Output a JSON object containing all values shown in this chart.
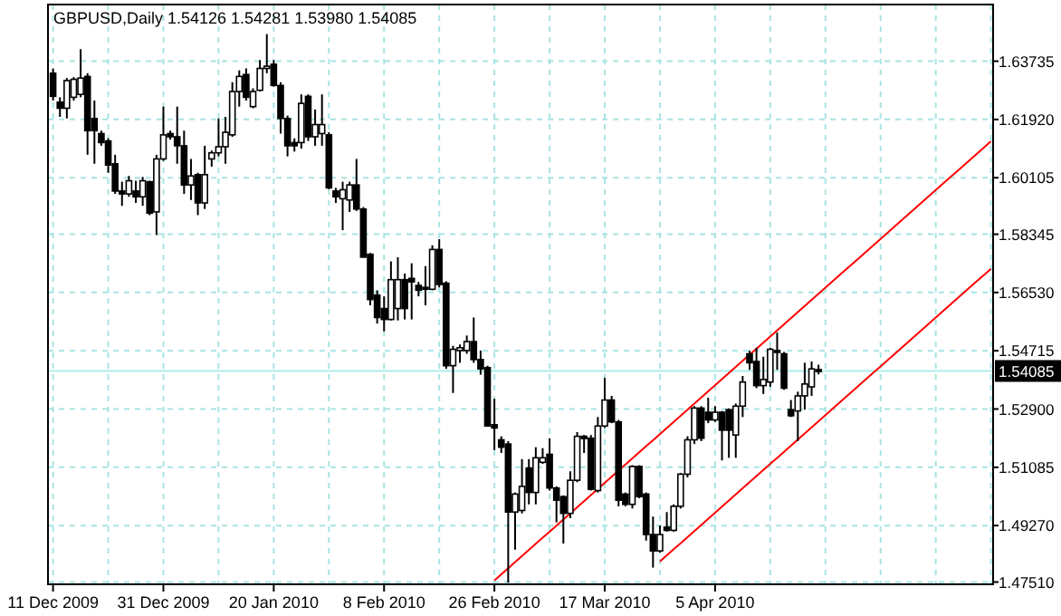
{
  "chart_data": {
    "type": "candlestick",
    "title": "GBPUSD,Daily  1.54126 1.54281 1.53980 1.54085",
    "categories": [
      "11 Dec 2009",
      null,
      null,
      null,
      null,
      null,
      null,
      null,
      null,
      null,
      null,
      null,
      null,
      null,
      null,
      null,
      "31 Dec 2009",
      null,
      null,
      null,
      null,
      null,
      null,
      null,
      null,
      null,
      null,
      null,
      null,
      null,
      null,
      null,
      "20 Jan 2010",
      null,
      null,
      null,
      null,
      null,
      null,
      null,
      null,
      null,
      null,
      null,
      null,
      null,
      null,
      null,
      "8 Feb 2010",
      null,
      null,
      null,
      null,
      null,
      null,
      null,
      null,
      null,
      null,
      null,
      null,
      null,
      null,
      null,
      "26 Feb 2010",
      null,
      null,
      null,
      null,
      null,
      null,
      null,
      null,
      null,
      null,
      null,
      null,
      null,
      null,
      null,
      "17 Mar 2010",
      null,
      null,
      null,
      null,
      null,
      null,
      null,
      null,
      null,
      null,
      null,
      null,
      null,
      null,
      null,
      "5 Apr 2010",
      null,
      null,
      null,
      null,
      null,
      null,
      null,
      null,
      null,
      null,
      null,
      null,
      null,
      null,
      null,
      null,
      null,
      null,
      null,
      null,
      null,
      null,
      null,
      null,
      null,
      null,
      null,
      null,
      null,
      null,
      null,
      null,
      null,
      null,
      null,
      null,
      null,
      null,
      null,
      null
    ],
    "ohlc": [
      [
        1.6336,
        1.6351,
        1.6251,
        1.6264
      ],
      [
        1.6246,
        1.6261,
        1.62,
        1.6227
      ],
      [
        1.6227,
        1.6321,
        1.6195,
        1.6313
      ],
      [
        1.6261,
        1.6324,
        1.6251,
        1.6317
      ],
      [
        1.627,
        1.6411,
        1.6261,
        1.6321
      ],
      [
        1.6326,
        1.6336,
        1.6082,
        1.6157
      ],
      [
        1.6195,
        1.6251,
        1.6054,
        1.6157
      ],
      [
        1.6148,
        1.6157,
        1.611,
        1.612
      ],
      [
        1.6125,
        1.6133,
        1.6026,
        1.605
      ],
      [
        1.6054,
        1.6082,
        1.596,
        1.5969
      ],
      [
        1.5969,
        1.5998,
        1.5923,
        1.596
      ],
      [
        1.596,
        1.6016,
        1.5951,
        1.6001
      ],
      [
        1.5969,
        1.6001,
        1.5932,
        1.5951
      ],
      [
        1.5951,
        1.6013,
        1.5923,
        1.6001
      ],
      [
        1.5998,
        1.6001,
        1.5894,
        1.59
      ],
      [
        1.5904,
        1.6082,
        1.5832,
        1.6069
      ],
      [
        1.6069,
        1.6232,
        1.6063,
        1.6144
      ],
      [
        1.6148,
        1.6157,
        1.6129,
        1.6138
      ],
      [
        1.6138,
        1.6232,
        1.6054,
        1.611
      ],
      [
        1.611,
        1.6157,
        1.596,
        1.5988
      ],
      [
        1.5988,
        1.6069,
        1.5941,
        1.6016
      ],
      [
        1.602,
        1.6026,
        1.5894,
        1.5932
      ],
      [
        1.5932,
        1.611,
        1.5913,
        1.602
      ],
      [
        1.6069,
        1.6095,
        1.6045,
        1.6088
      ],
      [
        1.6088,
        1.6195,
        1.6077,
        1.6107
      ],
      [
        1.6107,
        1.62,
        1.6054,
        1.6152
      ],
      [
        1.6144,
        1.6308,
        1.6138,
        1.6279
      ],
      [
        1.6279,
        1.6345,
        1.6232,
        1.6326
      ],
      [
        1.6332,
        1.6351,
        1.6251,
        1.6261
      ],
      [
        1.6232,
        1.6289,
        1.6227,
        1.6279
      ],
      [
        1.6283,
        1.6377,
        1.6279,
        1.6351
      ],
      [
        1.6351,
        1.6458,
        1.6336,
        1.6358
      ],
      [
        1.6364,
        1.6377,
        1.6294,
        1.6298
      ],
      [
        1.6298,
        1.6308,
        1.6148,
        1.6195
      ],
      [
        1.6195,
        1.6204,
        1.6077,
        1.611
      ],
      [
        1.612,
        1.6133,
        1.6092,
        1.611
      ],
      [
        1.612,
        1.627,
        1.6101,
        1.6242
      ],
      [
        1.6264,
        1.627,
        1.6125,
        1.6138
      ],
      [
        1.6138,
        1.6223,
        1.611,
        1.6176
      ],
      [
        1.6148,
        1.627,
        1.611,
        1.6176
      ],
      [
        1.6144,
        1.6152,
        1.5975,
        1.5979
      ],
      [
        1.5969,
        1.5979,
        1.5932,
        1.5951
      ],
      [
        1.5945,
        1.5998,
        1.5847,
        1.5973
      ],
      [
        1.5941,
        1.5998,
        1.5904,
        1.5988
      ],
      [
        1.5988,
        1.6069,
        1.5907,
        1.5913
      ],
      [
        1.5913,
        1.5919,
        1.5763,
        1.5763
      ],
      [
        1.5772,
        1.5776,
        1.5613,
        1.5631
      ],
      [
        1.5645,
        1.566,
        1.5556,
        1.5575
      ],
      [
        1.5603,
        1.5641,
        1.5532,
        1.5569
      ],
      [
        1.5569,
        1.575,
        1.5566,
        1.5693
      ],
      [
        1.5603,
        1.5763,
        1.5566,
        1.5693
      ],
      [
        1.5693,
        1.5712,
        1.5569,
        1.5603
      ],
      [
        1.5697,
        1.5744,
        1.5569,
        1.5686
      ],
      [
        1.5675,
        1.5686,
        1.5641,
        1.566
      ],
      [
        1.5669,
        1.5735,
        1.5613,
        1.5663
      ],
      [
        1.5663,
        1.58,
        1.566,
        1.5787
      ],
      [
        1.5787,
        1.5819,
        1.5669,
        1.5678
      ],
      [
        1.5682,
        1.5688,
        1.5415,
        1.5425
      ],
      [
        1.5425,
        1.5487,
        1.534,
        1.5476
      ],
      [
        1.5472,
        1.5491,
        1.5434,
        1.5481
      ],
      [
        1.5472,
        1.5519,
        1.5462,
        1.55
      ],
      [
        1.55,
        1.5575,
        1.5434,
        1.5444
      ],
      [
        1.5444,
        1.5472,
        1.5397,
        1.5415
      ],
      [
        1.5419,
        1.5425,
        1.5237,
        1.5237
      ],
      [
        1.5241,
        1.5322,
        1.5162,
        1.5231
      ],
      [
        1.5194,
        1.5205,
        1.5153,
        1.5171
      ],
      [
        1.5181,
        1.519,
        1.4749,
        1.4969
      ],
      [
        1.4969,
        1.503,
        1.4852,
        1.5025
      ],
      [
        1.4974,
        1.5134,
        1.4965,
        1.5049
      ],
      [
        1.5106,
        1.5134,
        1.4993,
        1.503
      ],
      [
        1.503,
        1.5171,
        1.4993,
        1.5138
      ],
      [
        1.5124,
        1.5168,
        1.5119,
        1.5138
      ],
      [
        1.5149,
        1.5199,
        1.5036,
        1.5044
      ],
      [
        1.5044,
        1.5049,
        1.4937,
        1.5006
      ],
      [
        1.5017,
        1.5021,
        1.4871,
        1.4965
      ],
      [
        1.4965,
        1.5096,
        1.495,
        1.5068
      ],
      [
        1.5068,
        1.5218,
        1.5062,
        1.5205
      ],
      [
        1.5205,
        1.5209,
        1.5153,
        1.5198
      ],
      [
        1.5199,
        1.5209,
        1.5036,
        1.504
      ],
      [
        1.5036,
        1.5265,
        1.503,
        1.5237
      ],
      [
        1.5237,
        1.5387,
        1.5231,
        1.5318
      ],
      [
        1.5318,
        1.5331,
        1.5246,
        1.525
      ],
      [
        1.525,
        1.5256,
        1.4987,
        1.5006
      ],
      [
        1.5025,
        1.503,
        1.4987,
        1.4993
      ],
      [
        1.4993,
        1.5115,
        1.498,
        1.5111
      ],
      [
        1.5111,
        1.5115,
        1.5012,
        1.5017
      ],
      [
        1.5025,
        1.503,
        1.488,
        1.4899
      ],
      [
        1.4899,
        1.4955,
        1.4796,
        1.4848
      ],
      [
        1.4848,
        1.4927,
        1.4843,
        1.4899
      ],
      [
        1.4922,
        1.4969,
        1.4908,
        1.4912
      ],
      [
        1.4912,
        1.4993,
        1.4908,
        1.4987
      ],
      [
        1.4987,
        1.5091,
        1.498,
        1.5087
      ],
      [
        1.5087,
        1.5205,
        1.5077,
        1.5194
      ],
      [
        1.5194,
        1.5299,
        1.5181,
        1.5293
      ],
      [
        1.5293,
        1.5299,
        1.519,
        1.5199
      ],
      [
        1.528,
        1.5325,
        1.5246,
        1.5256
      ],
      [
        1.5256,
        1.5299,
        1.525,
        1.528
      ],
      [
        1.528,
        1.5284,
        1.513,
        1.5224
      ],
      [
        1.5288,
        1.5292,
        1.5138,
        1.5224
      ],
      [
        1.5209,
        1.5307,
        1.5138,
        1.5299
      ],
      [
        1.5299,
        1.5393,
        1.5265,
        1.5374
      ],
      [
        1.5462,
        1.5472,
        1.5412,
        1.5434
      ],
      [
        1.5438,
        1.5481,
        1.5355,
        1.5363
      ],
      [
        1.5363,
        1.5453,
        1.5337,
        1.5382
      ],
      [
        1.5374,
        1.5481,
        1.5359,
        1.5476
      ],
      [
        1.5472,
        1.5528,
        1.5412,
        1.5468
      ],
      [
        1.5462,
        1.5468,
        1.535,
        1.5355
      ],
      [
        1.5288,
        1.5318,
        1.5265,
        1.5269
      ],
      [
        1.5284,
        1.5344,
        1.519,
        1.5331
      ],
      [
        1.5331,
        1.5434,
        1.5288,
        1.5368
      ],
      [
        1.5359,
        1.5438,
        1.5331,
        1.5415
      ],
      [
        1.54126,
        1.54281,
        1.5398,
        1.54085
      ],
      null,
      null,
      null,
      null,
      null,
      null,
      null,
      null,
      null,
      null,
      null,
      null,
      null,
      null,
      null,
      null,
      null,
      null,
      null,
      null,
      null,
      null,
      null,
      null,
      null
    ],
    "series": [
      {
        "type": "line",
        "color": "#ff0000",
        "values": [
          null,
          null,
          null,
          null,
          null,
          null,
          null,
          null,
          null,
          null,
          null,
          null,
          null,
          null,
          null,
          null,
          null,
          null,
          null,
          null,
          null,
          null,
          null,
          null,
          null,
          null,
          null,
          null,
          null,
          null,
          null,
          null,
          null,
          null,
          null,
          null,
          null,
          null,
          null,
          null,
          null,
          null,
          null,
          null,
          null,
          null,
          null,
          null,
          null,
          null,
          null,
          null,
          null,
          null,
          null,
          null,
          null,
          null,
          null,
          null,
          null,
          null,
          null,
          null,
          1.4756,
          1.4775,
          1.4794,
          1.4813,
          1.4832,
          1.4851,
          1.487,
          1.4889,
          1.4908,
          1.4927,
          1.4946,
          1.4965,
          1.4984,
          1.5003,
          1.5022,
          1.5041,
          1.506,
          1.5079,
          1.5098,
          1.5117,
          1.5136,
          1.5155,
          1.5174,
          1.5193,
          1.5212,
          1.5231,
          1.525,
          1.5269,
          1.5288,
          1.5307,
          1.5326,
          1.5345,
          1.5364,
          1.5383,
          1.5402,
          1.5421,
          1.544,
          1.5459,
          1.5478,
          1.5497,
          1.5516,
          1.5535,
          1.5554,
          1.5573,
          1.5592,
          1.5611,
          1.563,
          1.5649,
          1.5668,
          1.5687,
          1.5706,
          1.5725,
          1.5744,
          1.5763,
          1.5782,
          1.5801,
          1.582,
          1.5839,
          1.5858,
          1.5877,
          1.5896,
          1.5915,
          1.5934,
          1.5953,
          1.5972,
          1.5991,
          1.601,
          1.6029,
          1.6048,
          1.6067,
          1.6086,
          1.6105,
          1.6124
        ]
      },
      {
        "type": "line",
        "color": "#ff0000",
        "values": [
          null,
          null,
          null,
          null,
          null,
          null,
          null,
          null,
          null,
          null,
          null,
          null,
          null,
          null,
          null,
          null,
          null,
          null,
          null,
          null,
          null,
          null,
          null,
          null,
          null,
          null,
          null,
          null,
          null,
          null,
          null,
          null,
          null,
          null,
          null,
          null,
          null,
          null,
          null,
          null,
          null,
          null,
          null,
          null,
          null,
          null,
          null,
          null,
          null,
          null,
          null,
          null,
          null,
          null,
          null,
          null,
          null,
          null,
          null,
          null,
          null,
          null,
          null,
          null,
          null,
          null,
          null,
          null,
          null,
          null,
          null,
          null,
          null,
          null,
          null,
          null,
          null,
          null,
          null,
          null,
          null,
          null,
          null,
          null,
          null,
          null,
          null,
          null,
          1.4815,
          1.4834,
          1.4853,
          1.4872,
          1.4891,
          1.491,
          1.4929,
          1.4948,
          1.4967,
          1.4986,
          1.5005,
          1.5024,
          1.5043,
          1.5062,
          1.5081,
          1.51,
          1.5119,
          1.5138,
          1.5157,
          1.5176,
          1.5195,
          1.5214,
          1.5233,
          1.5252,
          1.5271,
          1.529,
          1.5309,
          1.5328,
          1.5347,
          1.5366,
          1.5385,
          1.5404,
          1.5423,
          1.5442,
          1.5461,
          1.548,
          1.5499,
          1.5518,
          1.5537,
          1.5556,
          1.5575,
          1.5594,
          1.5613,
          1.5632,
          1.5651,
          1.567,
          1.5689,
          1.5708,
          1.5727
        ]
      }
    ],
    "ylim": [
      1.4744,
      1.655
    ],
    "yticks": [
      {
        "value": 1.4751,
        "label": "1.47510"
      },
      {
        "value": 1.4927,
        "label": "1.49270"
      },
      1.51085,
      {
        "value": 1.529,
        "label": "1.52900"
      },
      1.54715,
      {
        "value": 1.5653,
        "label": "1.56530"
      },
      1.58345,
      1.60105,
      {
        "value": 1.6192,
        "label": "1.61920"
      },
      1.63735
    ],
    "ref_lines": [
      {
        "axis": "y",
        "value": 1.54085,
        "label": "1.54085",
        "color": "#aeeeee"
      }
    ],
    "grid": true
  }
}
